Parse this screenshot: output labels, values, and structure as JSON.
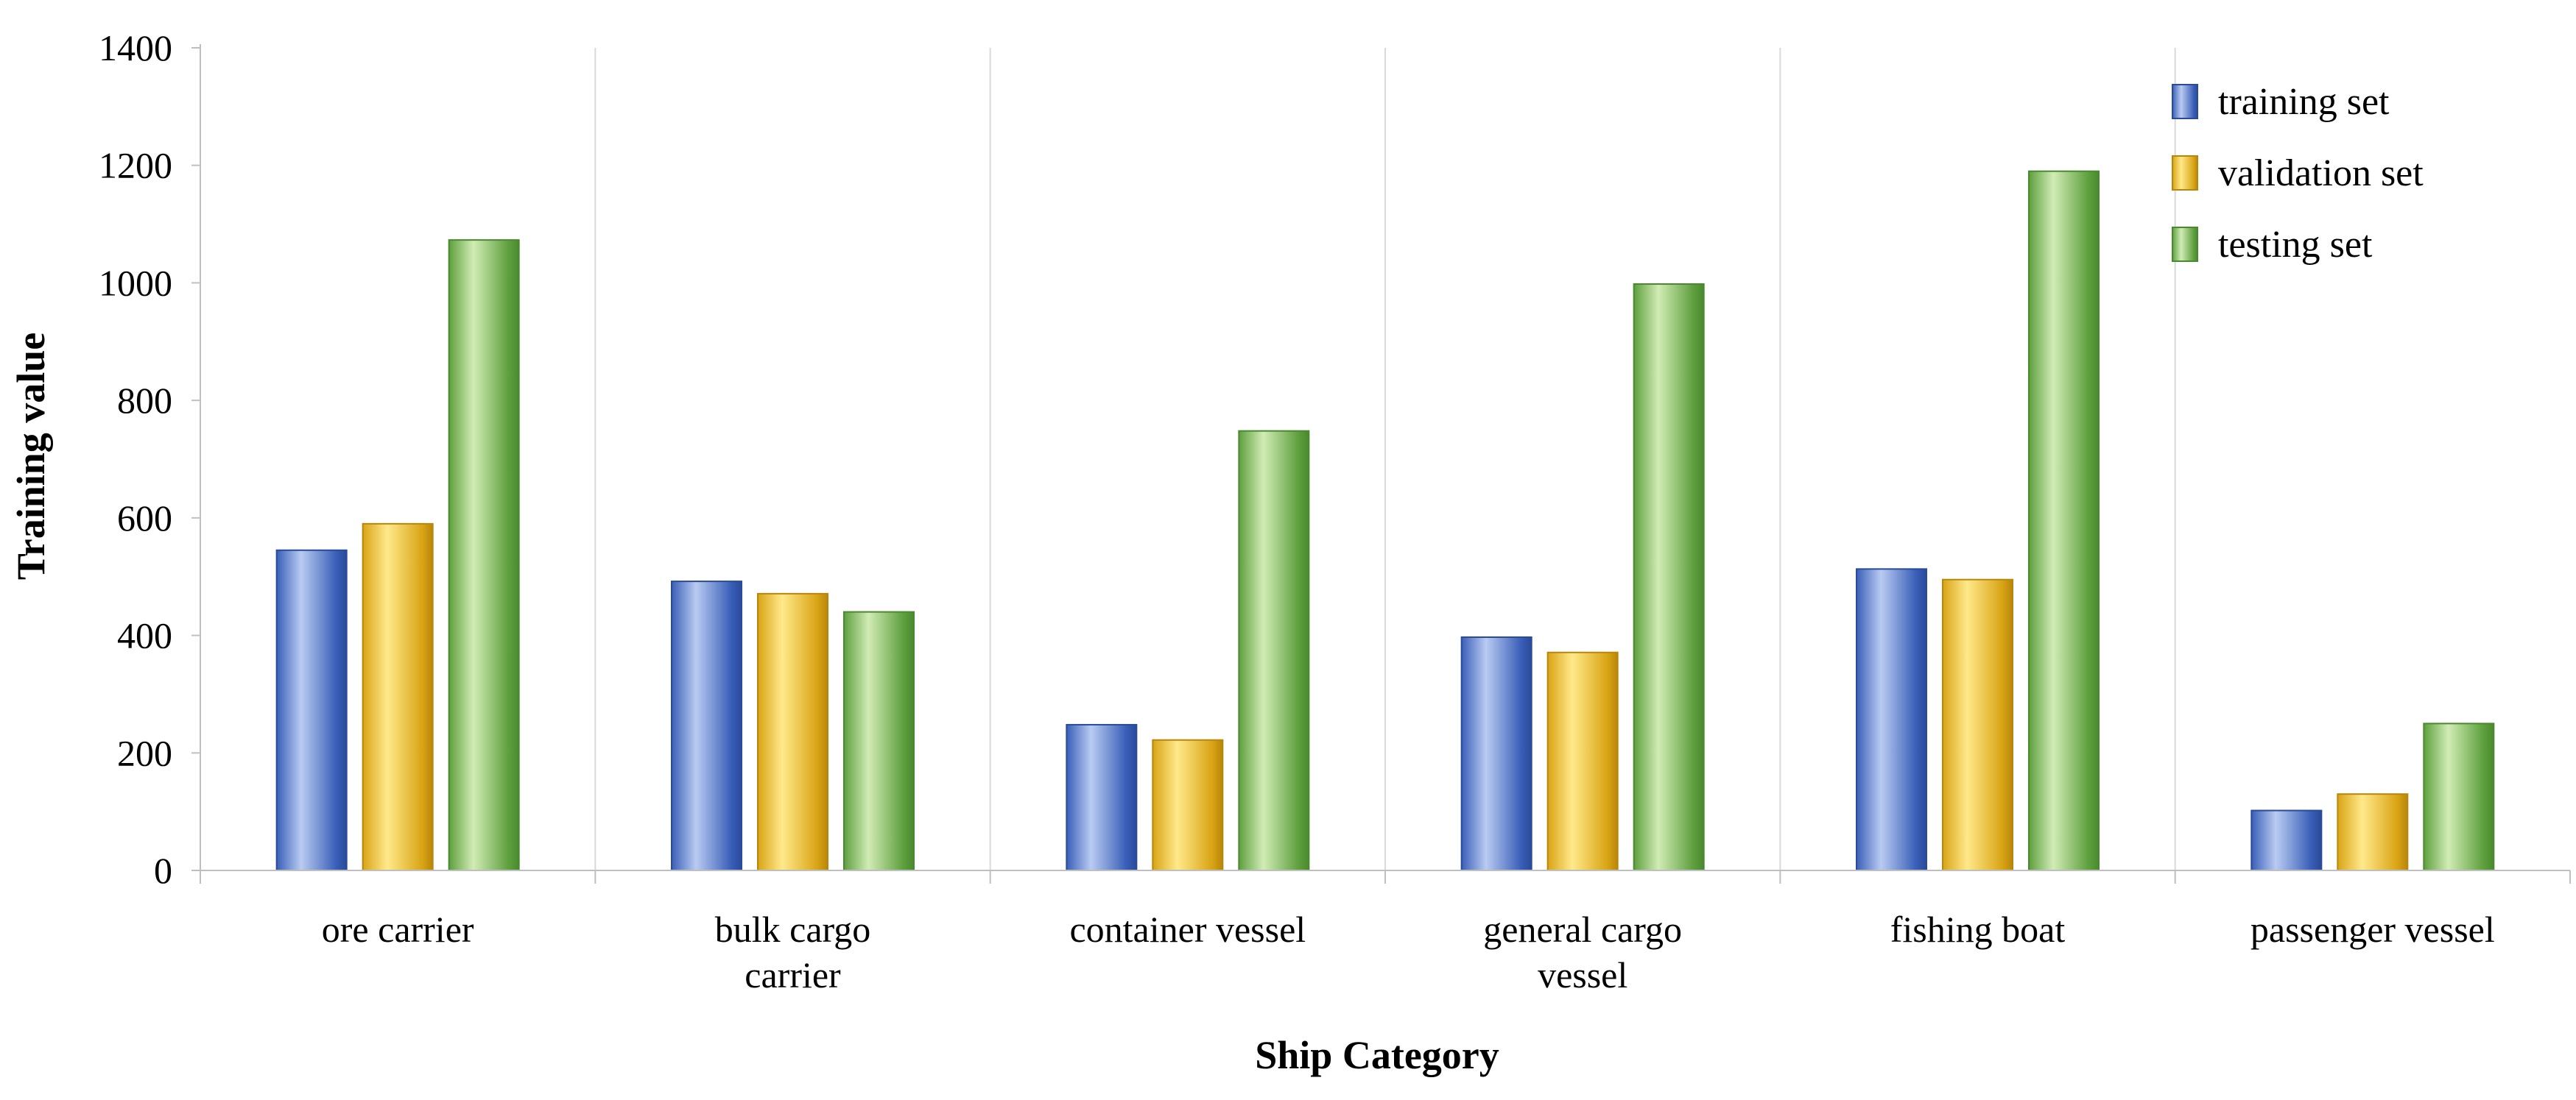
{
  "chart_data": {
    "type": "bar",
    "title": "",
    "xlabel": "Ship Category",
    "ylabel": "Training value",
    "ylim": [
      0,
      1400
    ],
    "yticks": [
      0,
      200,
      400,
      600,
      800,
      1000,
      1200,
      1400
    ],
    "categories": [
      [
        "ore carrier"
      ],
      [
        "bulk cargo",
        "carrier"
      ],
      [
        "container vessel"
      ],
      [
        "general cargo",
        "vessel"
      ],
      [
        "fishing boat"
      ],
      [
        "passenger vessel"
      ]
    ],
    "series": [
      {
        "name": "training set",
        "values": [
          545,
          492,
          248,
          397,
          513,
          102
        ]
      },
      {
        "name": "validation set",
        "values": [
          590,
          471,
          222,
          371,
          495,
          130
        ]
      },
      {
        "name": "testing set",
        "values": [
          1073,
          440,
          748,
          998,
          1190,
          250
        ]
      }
    ],
    "colors": {
      "training set": [
        "#3a5fb8",
        "#b9cbf1",
        "#2a4a9a"
      ],
      "validation set": [
        "#d9a415",
        "#ffe98a",
        "#b8860b"
      ],
      "testing set": [
        "#5e9f3e",
        "#d1ecb5",
        "#4a8a2f"
      ]
    },
    "grid": "vertical separators between categories",
    "legend_position": "top-right"
  }
}
